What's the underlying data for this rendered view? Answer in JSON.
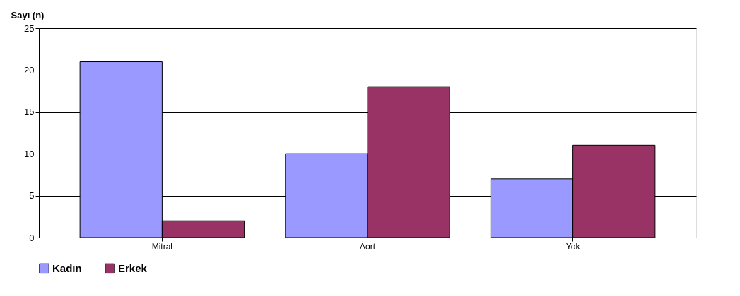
{
  "chart_data": {
    "type": "bar",
    "ylabel": "Sayı (n)",
    "categories": [
      "Mitral",
      "Aort",
      "Yok"
    ],
    "series": [
      {
        "name": "Kadın",
        "color": "#9999ff",
        "values": [
          21,
          10,
          7
        ]
      },
      {
        "name": "Erkek",
        "color": "#993366",
        "values": [
          2,
          18,
          11
        ]
      }
    ],
    "ylim": [
      0,
      25
    ],
    "yticks": [
      0,
      5,
      10,
      15,
      20,
      25
    ],
    "grid": "y",
    "legend": "bottom"
  }
}
